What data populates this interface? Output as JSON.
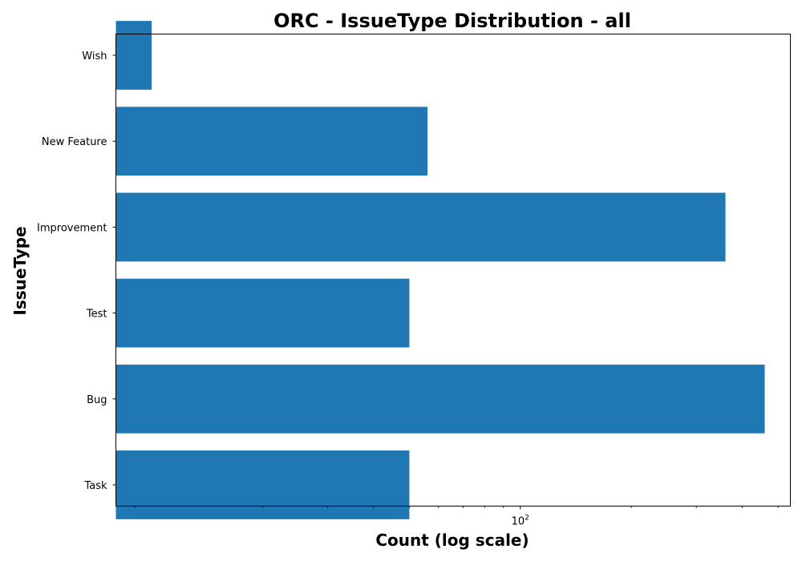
{
  "chart_data": {
    "type": "bar",
    "orientation": "horizontal",
    "title": "ORC - IssueType Distribution - all",
    "xlabel": "Count (log scale)",
    "ylabel": "IssueType",
    "x_scale": "log",
    "xlim": [
      8,
      540
    ],
    "categories": [
      "Task",
      "Bug",
      "Test",
      "Improvement",
      "New Feature",
      "Wish"
    ],
    "values": [
      50,
      460,
      50,
      360,
      56,
      10
    ],
    "x_tick_labels": [
      {
        "value": 100,
        "base": "10",
        "exponent": "2"
      }
    ],
    "bar_color": "#1f77b4",
    "grid": false,
    "legend": "none"
  }
}
